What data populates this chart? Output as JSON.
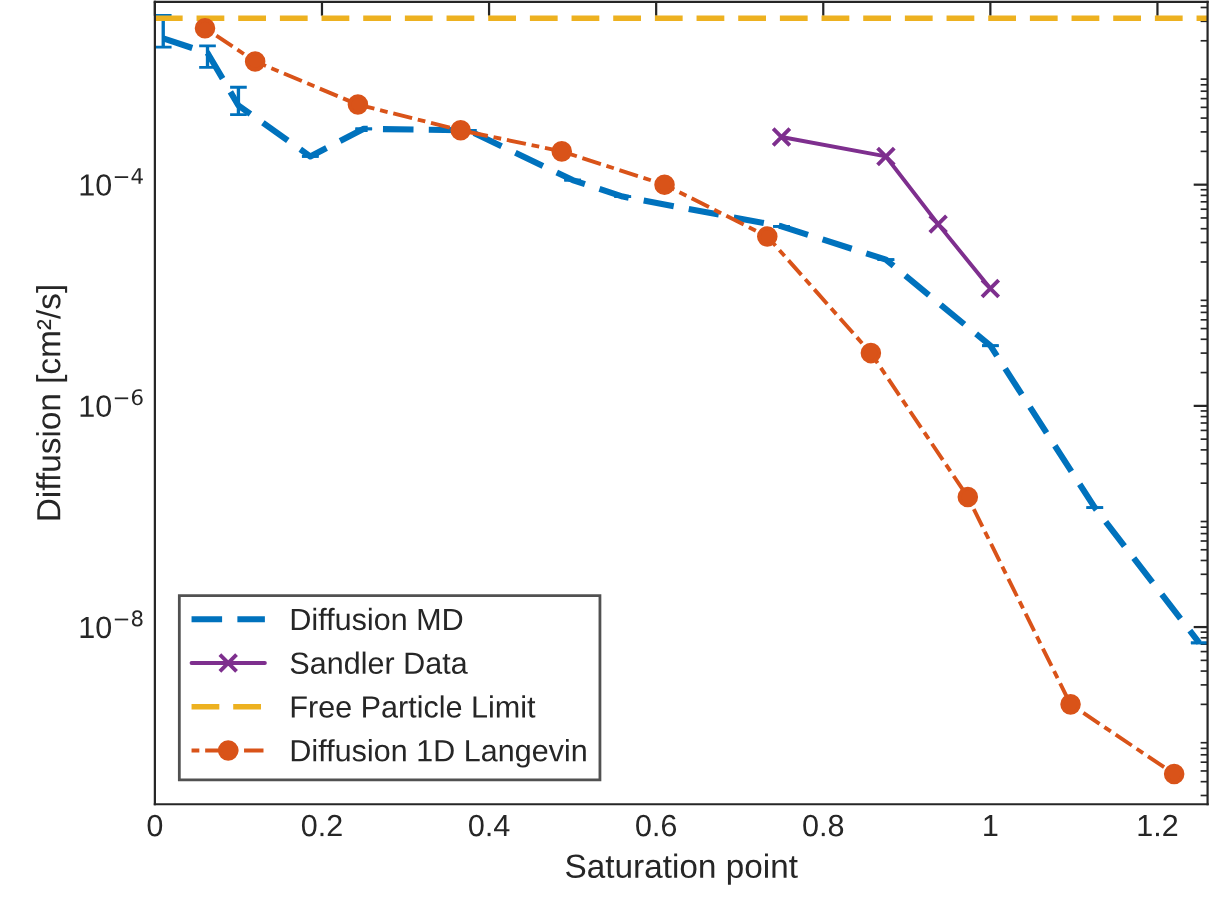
{
  "chart_data": {
    "type": "line",
    "xlabel": "Saturation point",
    "ylabel": "Diffusion [cm²/s]",
    "log": "y",
    "xlim": [
      0,
      1.26
    ],
    "xticks": [
      0,
      0.2,
      0.4,
      0.6,
      0.8,
      1,
      1.2
    ],
    "ylim": [
      2.5e-10,
      0.0045
    ],
    "yticks": [
      {
        "value": 1e-08,
        "label": "10$^{−8}$"
      },
      {
        "value": 1e-06,
        "label": "10$^{−6}$"
      },
      {
        "value": 0.0001,
        "label": "10$^{−4}$"
      }
    ],
    "legend": "bottom left",
    "grid": false,
    "series": [
      {
        "name": "Diffusion MD",
        "color": "#0072bd",
        "marker": "none",
        "line_style": "dashed",
        "x": [
          0.01,
          0.063,
          0.1,
          0.186,
          0.25,
          0.375,
          0.5,
          0.56,
          0.75,
          0.875,
          1.0,
          1.125,
          1.25
        ],
        "values": [
          0.0021,
          0.00155,
          0.00052,
          0.00018,
          0.00032,
          0.00031,
          0.00011,
          7.8e-05,
          4.2e-05,
          2.1e-05,
          3.5e-06,
          1.2e-07,
          7.2e-09
        ],
        "errors": [
          [
            0.00175,
            0.0034
          ],
          [
            0.00115,
            0.0018
          ],
          [
            0.00043,
            0.00076
          ],
          null,
          null,
          null,
          null,
          null,
          null,
          null,
          null,
          null,
          null
        ]
      },
      {
        "name": "Sandler Data",
        "color": "#7e2f8e",
        "marker": "cross",
        "line_style": "solid",
        "x": [
          0.75,
          0.875,
          0.9375,
          1.0
        ],
        "values": [
          0.00027,
          0.00018,
          4.4e-05,
          1.15e-05
        ]
      },
      {
        "name": "Diffusion 1D Langevin",
        "color": "#d95319",
        "marker": "circle",
        "line_style": "dotted",
        "x": [
          0.06,
          0.12,
          0.243,
          0.366,
          0.487,
          0.61,
          0.733,
          0.857,
          0.973,
          1.096,
          1.22
        ],
        "values": [
          0.0026,
          0.0013,
          0.00053,
          0.00031,
          0.0002,
          0.0001,
          3.4e-05,
          3e-06,
          1.5e-07,
          2e-09,
          4.7e-10
        ]
      }
    ],
    "ref_lines": [
      {
        "axis": "y",
        "value": 0.0032,
        "label": "Free Particle Limit",
        "color": "#edb120",
        "line_style": "dashed"
      }
    ]
  }
}
